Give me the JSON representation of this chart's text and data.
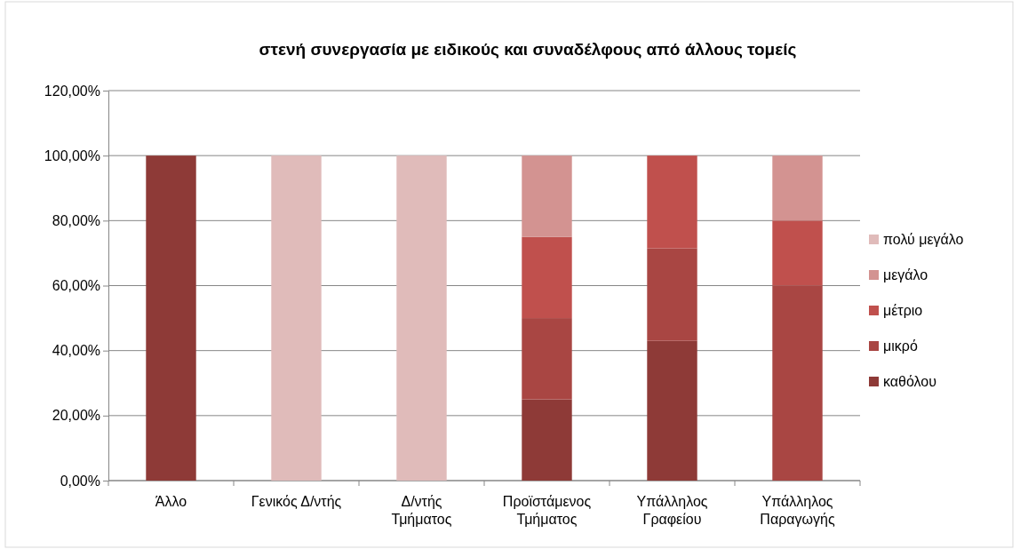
{
  "chart_data": {
    "type": "bar",
    "title": "στενή συνεργασία με ειδικούς και συναδέλφους από άλλους τομείς",
    "stacked": true,
    "categories": [
      "Άλλο",
      "Γενικός Δ/ντής",
      "Δ/ντής Τμήματος",
      "Προϊστάμενος Τμήματος",
      "Υπάλληλος Γραφείου",
      "Υπάλληλος Παραγωγής"
    ],
    "series": [
      {
        "name": "καθόλου",
        "color": "#8e3a37",
        "values": [
          100,
          0,
          0,
          25,
          43,
          0
        ]
      },
      {
        "name": "μικρό",
        "color": "#a94643",
        "values": [
          0,
          0,
          0,
          25,
          28.5,
          60
        ]
      },
      {
        "name": "μέτριο",
        "color": "#c0504d",
        "values": [
          0,
          0,
          0,
          25,
          28.5,
          20
        ]
      },
      {
        "name": "μεγάλο",
        "color": "#d39391",
        "values": [
          0,
          0,
          0,
          25,
          0,
          20
        ]
      },
      {
        "name": "πολύ μεγάλο",
        "color": "#e0bbba",
        "values": [
          0,
          100,
          100,
          0,
          0,
          0
        ]
      }
    ],
    "ylim": [
      0,
      120
    ],
    "yticks": [
      {
        "value": 0,
        "label": "0,00%"
      },
      {
        "value": 20,
        "label": "20,00%"
      },
      {
        "value": 40,
        "label": "40,00%"
      },
      {
        "value": 60,
        "label": "60,00%"
      },
      {
        "value": 80,
        "label": "80,00%"
      },
      {
        "value": 100,
        "label": "100,00%"
      },
      {
        "value": 120,
        "label": "120,00%"
      }
    ],
    "grid": "y",
    "legend": "right"
  }
}
